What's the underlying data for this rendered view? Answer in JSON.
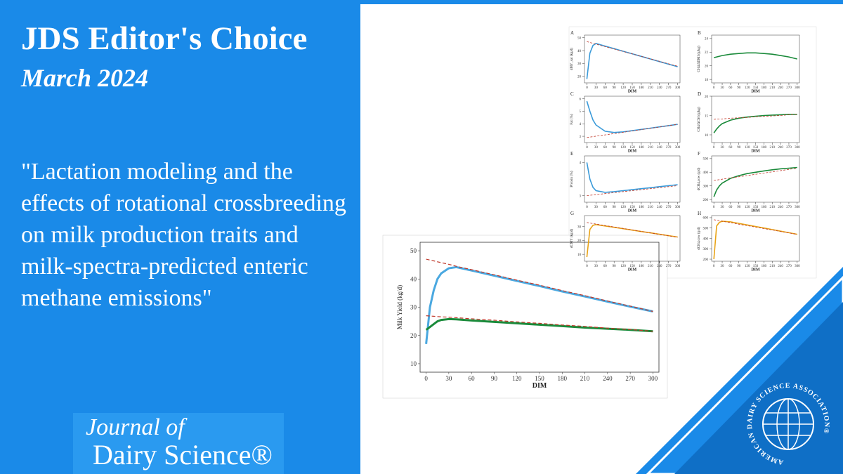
{
  "header": {
    "title": "JDS Editor's Choice",
    "subtitle": "March 2024"
  },
  "quote": "\"Lactation modeling and the effects of rotational crossbreeding on milk production traits and milk-spectra-predicted enteric methane emissions\"",
  "logo": {
    "line1": "Journal of",
    "line2": "Dairy Science®"
  },
  "association": "AMERICAN DAIRY SCIENCE ASSOCIATION®",
  "chart_data": [
    {
      "type": "line",
      "xlabel": "DIM",
      "ylabel": "Milk Yield (kg/d)",
      "x": [
        0,
        5,
        10,
        15,
        20,
        30,
        40,
        60,
        90,
        120,
        150,
        180,
        210,
        240,
        270,
        300
      ],
      "series": [
        {
          "color": "#4aa8e0",
          "values": [
            17,
            30,
            36,
            40,
            42,
            43.8,
            44.2,
            43,
            41.2,
            39.3,
            37.5,
            35.6,
            33.8,
            32,
            30.2,
            28.5
          ]
        },
        {
          "color": "#c0392b",
          "dash": true,
          "values": [
            47,
            46.7,
            46.4,
            46.1,
            45.8,
            45.2,
            44.5,
            43.3,
            41.5,
            39.6,
            37.8,
            35.9,
            34.1,
            32.2,
            30.4,
            28.5
          ]
        },
        {
          "color": "#1a8a3a",
          "values": [
            22,
            23,
            24,
            25,
            25.5,
            25.8,
            25.7,
            25.3,
            24.8,
            24.3,
            23.8,
            23.3,
            22.8,
            22.4,
            22,
            21.5
          ]
        },
        {
          "color": "#c0392b",
          "dash": true,
          "values": [
            27,
            26.9,
            26.8,
            26.7,
            26.6,
            26.5,
            26.3,
            25.9,
            25.4,
            24.8,
            24.3,
            23.7,
            23.2,
            22.6,
            22.1,
            21.5
          ]
        }
      ],
      "xlim": [
        -8,
        308
      ],
      "ylim": [
        7,
        53
      ],
      "xticks": [
        0,
        30,
        60,
        90,
        120,
        150,
        180,
        210,
        240,
        270,
        300
      ],
      "yticks": [
        10,
        20,
        30,
        40,
        50
      ]
    },
    {
      "type": "line",
      "label": "A",
      "xlabel": "DIM",
      "ylabel": "dMY_sat (kg/d)",
      "x": [
        0,
        10,
        20,
        30,
        60,
        90,
        120,
        150,
        180,
        210,
        240,
        270,
        300
      ],
      "series": [
        {
          "color": "#3a9ad9",
          "values": [
            18,
            38,
            44,
            45.5,
            43.5,
            41.5,
            39.5,
            37.5,
            35.5,
            33.5,
            31.5,
            29.5,
            27.5
          ]
        },
        {
          "color": "#c0392b",
          "dash": true,
          "values": [
            47,
            46.3,
            45.7,
            45,
            43.1,
            41.2,
            39.3,
            37.4,
            35.5,
            33.6,
            31.7,
            29.8,
            27.9
          ]
        }
      ],
      "xlim": [
        -8,
        308
      ],
      "ylim": [
        15,
        52
      ],
      "xticks": [
        0,
        30,
        60,
        90,
        120,
        150,
        180,
        210,
        240,
        270,
        300
      ],
      "yticks": [
        20,
        30,
        40,
        50
      ]
    },
    {
      "type": "line",
      "label": "B",
      "xlabel": "DIM",
      "ylabel": "CH4/ΔDMI (g/kg)",
      "x": [
        0,
        10,
        20,
        30,
        60,
        90,
        120,
        150,
        180,
        210,
        240,
        270,
        300
      ],
      "series": [
        {
          "color": "#1a8a3a",
          "values": [
            21.2,
            21.3,
            21.4,
            21.5,
            21.7,
            21.8,
            21.9,
            21.9,
            21.8,
            21.7,
            21.5,
            21.3,
            21
          ]
        }
      ],
      "xlim": [
        -8,
        308
      ],
      "ylim": [
        17.5,
        24.5
      ],
      "xticks": [
        0,
        30,
        60,
        90,
        120,
        150,
        180,
        210,
        240,
        270,
        300
      ],
      "yticks": [
        18,
        20,
        22,
        24
      ]
    },
    {
      "type": "line",
      "label": "C",
      "xlabel": "DIM",
      "ylabel": "Fat (%)",
      "x": [
        0,
        10,
        20,
        30,
        60,
        90,
        120,
        150,
        180,
        210,
        240,
        270,
        300
      ],
      "series": [
        {
          "color": "#3a9ad9",
          "values": [
            5.8,
            5,
            4.3,
            3.9,
            3.4,
            3.3,
            3.35,
            3.45,
            3.55,
            3.65,
            3.75,
            3.85,
            3.95
          ]
        },
        {
          "color": "#c0392b",
          "dash": true,
          "values": [
            2.9,
            2.94,
            2.97,
            3.01,
            3.11,
            3.22,
            3.32,
            3.43,
            3.53,
            3.64,
            3.74,
            3.85,
            3.95
          ]
        }
      ],
      "xlim": [
        -8,
        308
      ],
      "ylim": [
        2.5,
        6.2
      ],
      "xticks": [
        0,
        30,
        60,
        90,
        120,
        150,
        180,
        210,
        240,
        270,
        300
      ],
      "yticks": [
        3,
        4,
        5,
        6
      ]
    },
    {
      "type": "line",
      "label": "D",
      "xlabel": "DIM",
      "ylabel": "CH4/ΔCM (g/kg)",
      "x": [
        0,
        10,
        20,
        30,
        60,
        90,
        120,
        150,
        180,
        210,
        240,
        270,
        300
      ],
      "series": [
        {
          "color": "#1a8a3a",
          "values": [
            10.5,
            11.5,
            12.3,
            12.9,
            13.8,
            14.3,
            14.6,
            14.8,
            15,
            15.1,
            15.2,
            15.3,
            15.3
          ]
        },
        {
          "color": "#c0392b",
          "dash": true,
          "values": [
            14,
            14.1,
            14.1,
            14.1,
            14.3,
            14.4,
            14.5,
            14.7,
            14.8,
            14.9,
            15,
            15.2,
            15.3
          ]
        }
      ],
      "xlim": [
        -8,
        308
      ],
      "ylim": [
        8,
        20
      ],
      "xticks": [
        0,
        30,
        60,
        90,
        120,
        150,
        180,
        210,
        240,
        270,
        300
      ],
      "yticks": [
        10,
        15,
        20
      ]
    },
    {
      "type": "line",
      "label": "E",
      "xlabel": "DIM",
      "ylabel": "Protein (%)",
      "x": [
        0,
        10,
        20,
        30,
        60,
        90,
        120,
        150,
        180,
        210,
        240,
        270,
        300
      ],
      "series": [
        {
          "color": "#3a9ad9",
          "values": [
            4,
            3.5,
            3.25,
            3.15,
            3.1,
            3.12,
            3.15,
            3.18,
            3.21,
            3.24,
            3.27,
            3.3,
            3.33
          ]
        },
        {
          "color": "#c0392b",
          "dash": true,
          "values": [
            3,
            3.01,
            3.02,
            3.03,
            3.06,
            3.09,
            3.12,
            3.15,
            3.18,
            3.21,
            3.24,
            3.27,
            3.3
          ]
        }
      ],
      "xlim": [
        -8,
        308
      ],
      "ylim": [
        2.8,
        4.2
      ],
      "xticks": [
        0,
        30,
        60,
        90,
        120,
        150,
        180,
        210,
        240,
        270,
        300
      ],
      "yticks": [
        3,
        4
      ]
    },
    {
      "type": "line",
      "label": "F",
      "xlabel": "DIM",
      "ylabel": "dCH4,cow (g/d)",
      "x": [
        0,
        10,
        20,
        30,
        60,
        90,
        120,
        150,
        180,
        210,
        240,
        270,
        300
      ],
      "series": [
        {
          "color": "#1a8a3a",
          "values": [
            220,
            270,
            300,
            320,
            355,
            375,
            390,
            400,
            410,
            418,
            425,
            430,
            435
          ]
        },
        {
          "color": "#c0392b",
          "dash": true,
          "values": [
            340,
            343,
            346,
            349,
            358,
            367,
            376,
            385,
            394,
            403,
            412,
            421,
            430
          ]
        }
      ],
      "xlim": [
        -8,
        308
      ],
      "ylim": [
        180,
        520
      ],
      "xticks": [
        0,
        30,
        60,
        90,
        120,
        150,
        180,
        210,
        240,
        270,
        300
      ],
      "yticks": [
        200,
        300,
        400,
        500
      ]
    },
    {
      "type": "line",
      "label": "G",
      "xlabel": "DIM",
      "ylabel": "dCMY (kg/d)",
      "x": [
        0,
        10,
        20,
        30,
        60,
        90,
        120,
        150,
        180,
        210,
        240,
        270,
        300
      ],
      "series": [
        {
          "color": "#e8a317",
          "values": [
            8,
            28,
            31,
            31.5,
            30.5,
            29.5,
            28.5,
            27.5,
            26.5,
            25.5,
            24.5,
            23.5,
            22.5
          ]
        },
        {
          "color": "#c0392b",
          "dash": true,
          "values": [
            33,
            32.6,
            32.2,
            31.9,
            30.8,
            29.8,
            28.7,
            27.6,
            26.6,
            25.5,
            24.4,
            23.4,
            22.3
          ]
        }
      ],
      "xlim": [
        -8,
        308
      ],
      "ylim": [
        5,
        38
      ],
      "xticks": [
        0,
        30,
        60,
        90,
        120,
        150,
        180,
        210,
        240,
        270,
        300
      ],
      "yticks": [
        10,
        20,
        30
      ]
    },
    {
      "type": "line",
      "label": "H",
      "xlabel": "DIM",
      "ylabel": "dCH4,cow (g/d)",
      "x": [
        0,
        10,
        20,
        30,
        60,
        90,
        120,
        150,
        180,
        210,
        240,
        270,
        300
      ],
      "series": [
        {
          "color": "#e8a317",
          "values": [
            200,
            520,
            555,
            565,
            560,
            545,
            530,
            515,
            500,
            485,
            470,
            455,
            440
          ]
        },
        {
          "color": "#c0392b",
          "dash": true,
          "values": [
            580,
            575,
            571,
            566,
            552,
            537,
            523,
            509,
            495,
            481,
            467,
            453,
            439
          ]
        }
      ],
      "xlim": [
        -8,
        308
      ],
      "ylim": [
        180,
        620
      ],
      "xticks": [
        0,
        30,
        60,
        90,
        120,
        150,
        180,
        210,
        240,
        270,
        300
      ],
      "yticks": [
        200,
        300,
        400,
        500,
        600
      ]
    }
  ]
}
